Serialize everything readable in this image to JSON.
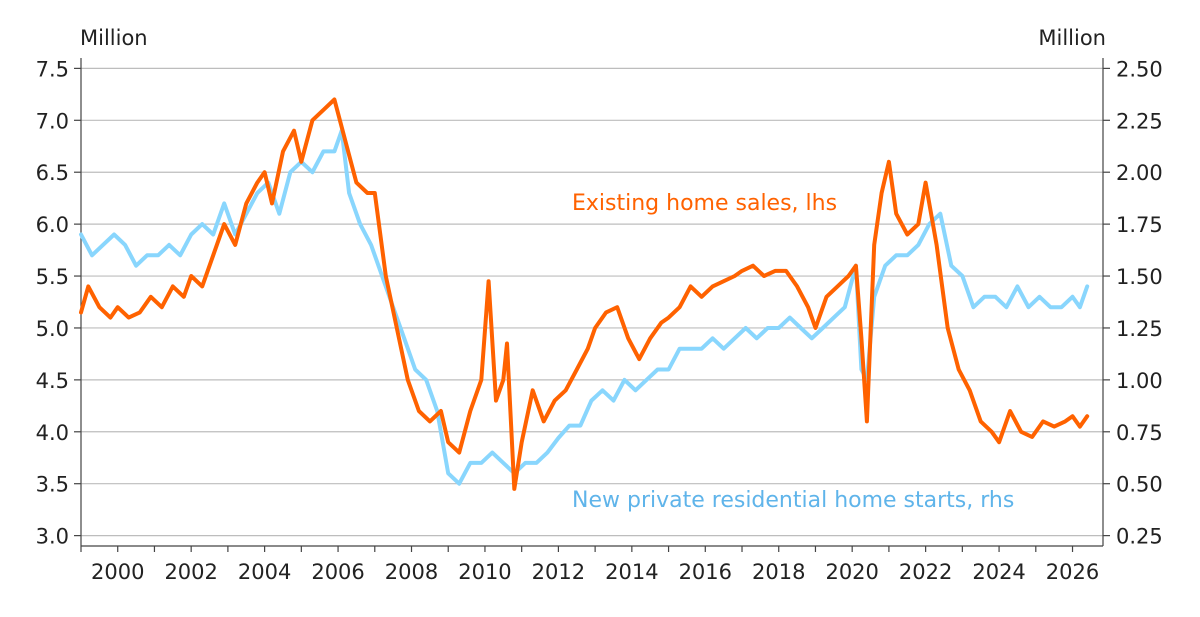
{
  "chart_data": {
    "type": "line",
    "left_axis": {
      "unit_label": "Million",
      "ylim": [
        2.9,
        7.6
      ],
      "ticks": [
        "3.0",
        "3.5",
        "4.0",
        "4.5",
        "5.0",
        "5.5",
        "6.0",
        "6.5",
        "7.0",
        "7.5"
      ]
    },
    "right_axis": {
      "unit_label": "Million",
      "ylim": [
        0.2,
        2.55
      ],
      "ticks": [
        "0.25",
        "0.50",
        "0.75",
        "1.00",
        "1.25",
        "1.50",
        "1.75",
        "2.00",
        "2.25",
        "2.50"
      ]
    },
    "x_axis": {
      "xlim": [
        1999.0,
        2026.83
      ],
      "ticks": [
        "2000",
        "2002",
        "2004",
        "2006",
        "2008",
        "2010",
        "2012",
        "2014",
        "2016",
        "2018",
        "2020",
        "2022",
        "2024",
        "2026"
      ]
    },
    "grid": true,
    "series": [
      {
        "name": "Existing home sales, lhs",
        "axis": "left",
        "color": "#ff6200",
        "x": [
          1999.0,
          1999.2,
          1999.5,
          1999.8,
          2000.0,
          2000.3,
          2000.6,
          2000.9,
          2001.2,
          2001.5,
          2001.8,
          2002.0,
          2002.3,
          2002.6,
          2002.9,
          2003.2,
          2003.5,
          2003.8,
          2004.0,
          2004.2,
          2004.5,
          2004.8,
          2005.0,
          2005.3,
          2005.6,
          2005.9,
          2006.2,
          2006.5,
          2006.8,
          2007.0,
          2007.3,
          2007.6,
          2007.9,
          2008.2,
          2008.5,
          2008.8,
          2009.0,
          2009.3,
          2009.6,
          2009.9,
          2010.1,
          2010.3,
          2010.5,
          2010.6,
          2010.8,
          2011.0,
          2011.3,
          2011.6,
          2011.9,
          2012.2,
          2012.5,
          2012.8,
          2013.0,
          2013.3,
          2013.6,
          2013.9,
          2014.2,
          2014.5,
          2014.8,
          2015.0,
          2015.3,
          2015.6,
          2015.9,
          2016.2,
          2016.5,
          2016.8,
          2017.0,
          2017.3,
          2017.6,
          2017.9,
          2018.2,
          2018.5,
          2018.8,
          2019.0,
          2019.3,
          2019.6,
          2019.9,
          2020.1,
          2020.25,
          2020.4,
          2020.6,
          2020.8,
          2021.0,
          2021.2,
          2021.5,
          2021.8,
          2022.0,
          2022.3,
          2022.6,
          2022.9,
          2023.2,
          2023.5,
          2023.8,
          2024.0,
          2024.3,
          2024.6,
          2024.9,
          2025.2,
          2025.5,
          2025.8,
          2026.0,
          2026.2,
          2026.4
        ],
        "values": [
          5.15,
          5.4,
          5.2,
          5.1,
          5.2,
          5.1,
          5.15,
          5.3,
          5.2,
          5.4,
          5.3,
          5.5,
          5.4,
          5.7,
          6.0,
          5.8,
          6.2,
          6.4,
          6.5,
          6.2,
          6.7,
          6.9,
          6.6,
          7.0,
          7.1,
          7.2,
          6.8,
          6.4,
          6.3,
          6.3,
          5.5,
          5.0,
          4.5,
          4.2,
          4.1,
          4.2,
          3.9,
          3.8,
          4.2,
          4.5,
          5.45,
          4.3,
          4.5,
          4.85,
          3.45,
          3.9,
          4.4,
          4.1,
          4.3,
          4.4,
          4.6,
          4.8,
          5.0,
          5.15,
          5.2,
          4.9,
          4.7,
          4.9,
          5.05,
          5.1,
          5.2,
          5.4,
          5.3,
          5.4,
          5.45,
          5.5,
          5.55,
          5.6,
          5.5,
          5.55,
          5.55,
          5.4,
          5.2,
          5.0,
          5.3,
          5.4,
          5.5,
          5.6,
          4.9,
          4.1,
          5.8,
          6.3,
          6.6,
          6.1,
          5.9,
          6.0,
          6.4,
          5.8,
          5.0,
          4.6,
          4.4,
          4.1,
          4.0,
          3.9,
          4.2,
          4.0,
          3.95,
          4.1,
          4.05,
          4.1,
          4.15,
          4.05,
          4.15
        ]
      },
      {
        "name": "New private residential home starts, rhs",
        "axis": "right",
        "color": "#89d6fd",
        "x": [
          1999.0,
          1999.3,
          1999.6,
          1999.9,
          2000.2,
          2000.5,
          2000.8,
          2001.1,
          2001.4,
          2001.7,
          2002.0,
          2002.3,
          2002.6,
          2002.9,
          2003.2,
          2003.5,
          2003.8,
          2004.1,
          2004.4,
          2004.7,
          2005.0,
          2005.3,
          2005.6,
          2005.9,
          2006.1,
          2006.3,
          2006.6,
          2006.9,
          2007.2,
          2007.5,
          2007.8,
          2008.1,
          2008.4,
          2008.7,
          2009.0,
          2009.3,
          2009.6,
          2009.9,
          2010.2,
          2010.5,
          2010.8,
          2011.1,
          2011.4,
          2011.7,
          2012.0,
          2012.3,
          2012.6,
          2012.9,
          2013.2,
          2013.5,
          2013.8,
          2014.1,
          2014.4,
          2014.7,
          2015.0,
          2015.3,
          2015.6,
          2015.9,
          2016.2,
          2016.5,
          2016.8,
          2017.1,
          2017.4,
          2017.7,
          2018.0,
          2018.3,
          2018.6,
          2018.9,
          2019.2,
          2019.5,
          2019.8,
          2020.1,
          2020.25,
          2020.4,
          2020.6,
          2020.9,
          2021.2,
          2021.5,
          2021.8,
          2022.1,
          2022.4,
          2022.7,
          2023.0,
          2023.3,
          2023.6,
          2023.9,
          2024.2,
          2024.5,
          2024.8,
          2025.1,
          2025.4,
          2025.7,
          2026.0,
          2026.2,
          2026.4
        ],
        "values": [
          1.7,
          1.6,
          1.65,
          1.7,
          1.65,
          1.55,
          1.6,
          1.6,
          1.65,
          1.6,
          1.7,
          1.75,
          1.7,
          1.85,
          1.7,
          1.8,
          1.9,
          1.95,
          1.8,
          2.0,
          2.05,
          2.0,
          2.1,
          2.1,
          2.2,
          1.9,
          1.75,
          1.65,
          1.5,
          1.35,
          1.2,
          1.05,
          1.0,
          0.85,
          0.55,
          0.5,
          0.6,
          0.6,
          0.65,
          0.6,
          0.55,
          0.6,
          0.6,
          0.65,
          0.72,
          0.78,
          0.78,
          0.9,
          0.95,
          0.9,
          1.0,
          0.95,
          1.0,
          1.05,
          1.05,
          1.15,
          1.15,
          1.15,
          1.2,
          1.15,
          1.2,
          1.25,
          1.2,
          1.25,
          1.25,
          1.3,
          1.25,
          1.2,
          1.25,
          1.3,
          1.35,
          1.55,
          1.05,
          1.0,
          1.4,
          1.55,
          1.6,
          1.6,
          1.65,
          1.75,
          1.8,
          1.55,
          1.5,
          1.35,
          1.4,
          1.4,
          1.35,
          1.45,
          1.35,
          1.4,
          1.35,
          1.35,
          1.4,
          1.35,
          1.45
        ]
      }
    ]
  }
}
